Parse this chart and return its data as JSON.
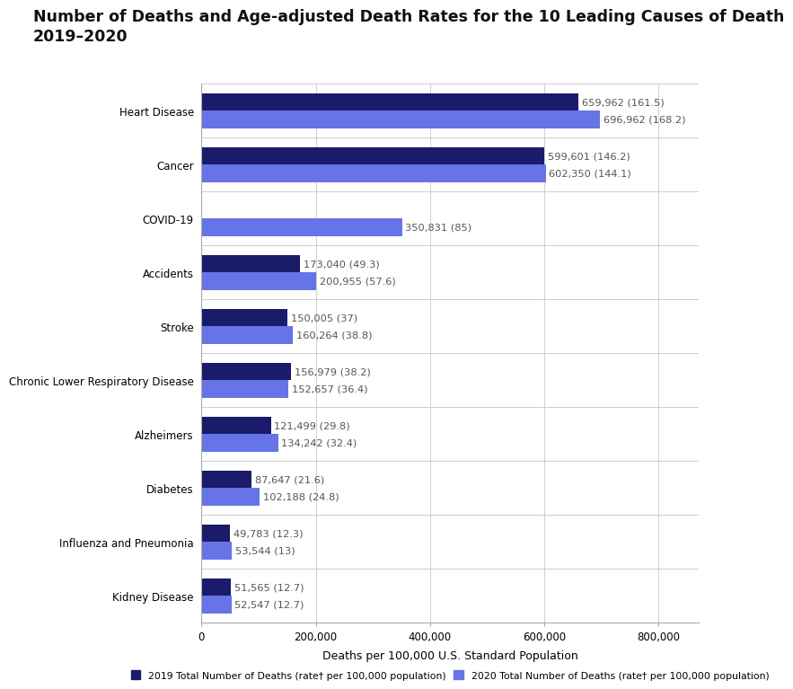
{
  "title_line1": "Number of Deaths and Age-adjusted Death Rates for the 10 Leading Causes of Death",
  "title_line2": "2019–2020",
  "categories": [
    "Heart Disease",
    "Cancer",
    "COVID-19",
    "Accidents",
    "Stroke",
    "Chronic Lower Respiratory Disease",
    "Alzheimers",
    "Diabetes",
    "Influenza and Pneumonia",
    "Kidney Disease"
  ],
  "values_2019": [
    659962,
    599601,
    0,
    173040,
    150005,
    156979,
    121499,
    87647,
    49783,
    51565
  ],
  "values_2020": [
    696962,
    602350,
    350831,
    200955,
    160264,
    152657,
    134242,
    102188,
    53544,
    52547
  ],
  "labels_2019": [
    "659,962 (161.5)",
    "599,601 (146.2)",
    "",
    "173,040 (49.3)",
    "150,005 (37)",
    "156,979 (38.2)",
    "121,499 (29.8)",
    "87,647 (21.6)",
    "49,783 (12.3)",
    "51,565 (12.7)"
  ],
  "labels_2020": [
    "696,962 (168.2)",
    "602,350 (144.1)",
    "350,831 (85)",
    "200,955 (57.6)",
    "160,264 (38.8)",
    "152,657 (36.4)",
    "134,242 (32.4)",
    "102,188 (24.8)",
    "53,544 (13)",
    "52,547 (12.7)"
  ],
  "color_2019": "#1b1b6b",
  "color_2020": "#6674e8",
  "xlabel": "Deaths per 100,000 U.S. Standard Population",
  "xlim": [
    0,
    870000
  ],
  "xticks": [
    0,
    200000,
    400000,
    600000,
    800000
  ],
  "xticklabels": [
    "0",
    "200,000",
    "400,000",
    "600,000",
    "800,000"
  ],
  "legend_2019": "2019 Total Number of Deaths (rate† per 100,000 population)",
  "legend_2020": "2020 Total Number of Deaths (rate† per 100,000 population)",
  "bar_height": 0.32,
  "background_color": "#ffffff",
  "title_fontsize": 12.5,
  "label_fontsize": 8.2,
  "tick_fontsize": 8.5,
  "xlabel_fontsize": 9
}
